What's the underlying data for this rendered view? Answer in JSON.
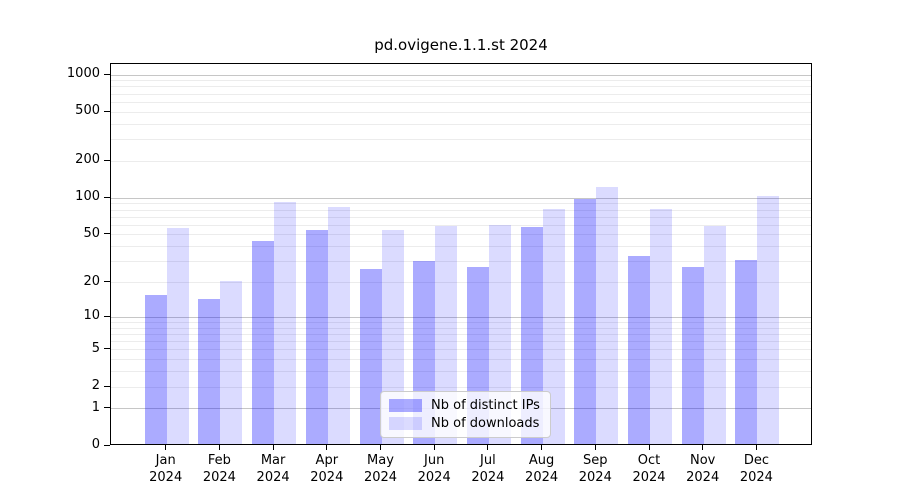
{
  "chart_data": {
    "type": "bar",
    "title": "pd.ovigene.1.1.st 2024",
    "year": "2024",
    "categories": [
      "Jan",
      "Feb",
      "Mar",
      "Apr",
      "May",
      "Jun",
      "Jul",
      "Aug",
      "Sep",
      "Oct",
      "Nov",
      "Dec"
    ],
    "series": [
      {
        "name": "Nb of distinct IPs",
        "color": "rgba(0,0,255,0.33)",
        "hex_on_white": "#aaaaf7",
        "values": [
          15,
          14,
          43,
          53,
          25,
          29,
          26,
          56,
          95,
          32,
          26,
          30
        ]
      },
      {
        "name": "Nb of downloads",
        "color": "rgba(0,0,255,0.14)",
        "hex_on_white": "#dcdcfa",
        "values": [
          55,
          20,
          89,
          82,
          53,
          57,
          58,
          79,
          120,
          78,
          57,
          100
        ]
      }
    ],
    "ylabel": "",
    "xlabel": "",
    "yticks": [
      0,
      1,
      2,
      5,
      10,
      20,
      50,
      100,
      200,
      500,
      1000
    ],
    "scale": "log1p",
    "ylim": [
      0,
      1228
    ],
    "grid": {
      "on": true,
      "major_at": [
        1,
        10,
        100,
        1000
      ],
      "minor_decades": [
        1,
        10,
        100
      ]
    },
    "legend_position": "lower-center",
    "colors": {
      "major_grid": "#c6c6c6",
      "minor_grid": "#ececec",
      "axis": "#000000",
      "background": "#ffffff"
    }
  }
}
